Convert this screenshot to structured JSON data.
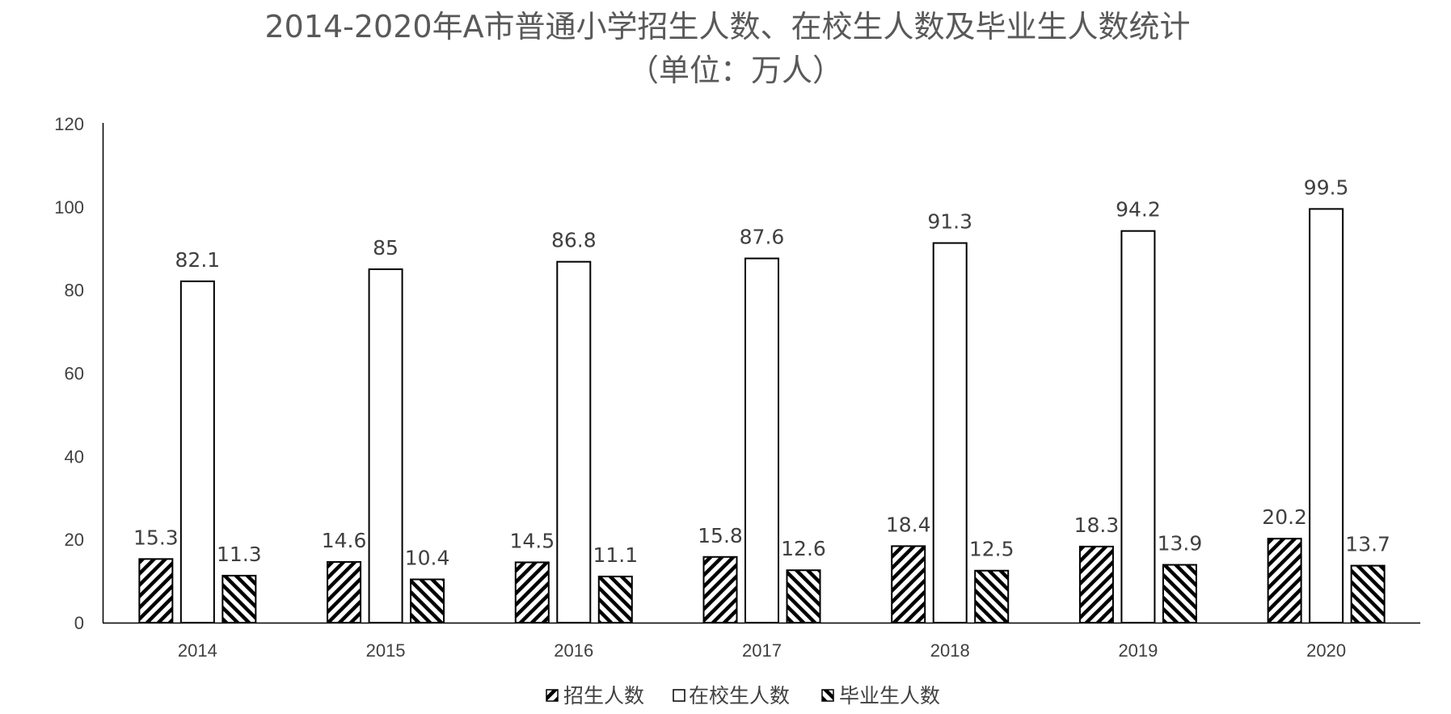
{
  "chart_data": {
    "type": "bar",
    "title": "2014-2020年A市普通小学招生人数、在校生人数及毕业生人数统计",
    "subtitle": "（单位：万人）",
    "categories": [
      "2014",
      "2015",
      "2016",
      "2017",
      "2018",
      "2019",
      "2020"
    ],
    "series": [
      {
        "name": "招生人数",
        "values": [
          15.3,
          14.6,
          14.5,
          15.8,
          18.4,
          18.3,
          20.2
        ],
        "fill": "hatch-forward"
      },
      {
        "name": "在校生人数",
        "values": [
          82.1,
          85,
          86.8,
          87.6,
          91.3,
          94.2,
          99.5
        ],
        "fill": "solid-white"
      },
      {
        "name": "毕业生人数",
        "values": [
          11.3,
          10.4,
          11.1,
          12.6,
          12.5,
          13.9,
          13.7
        ],
        "fill": "hatch-backward"
      }
    ],
    "ylim": [
      0,
      120
    ],
    "yticks": [
      0,
      20,
      40,
      60,
      80,
      100,
      120
    ],
    "xlabel": "",
    "ylabel": "",
    "grid": false,
    "data_labels": true,
    "legend": "bottom",
    "colors": {
      "bar_stroke": "#000000",
      "text": "#404040",
      "title": "#595959"
    }
  }
}
